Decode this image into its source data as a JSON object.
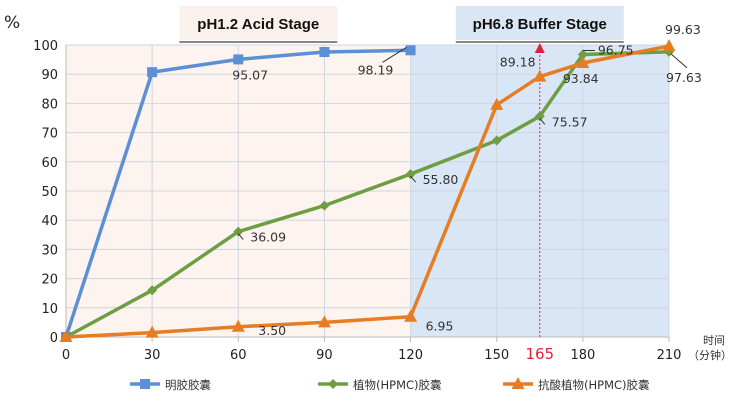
{
  "chart_data": {
    "type": "line",
    "title": "",
    "ylabel": "%",
    "xlabel": "时间（分钟）",
    "xlabel_line1": "时间",
    "xlabel_line2": "（分钟）",
    "xlim": [
      0,
      210
    ],
    "ylim": [
      0,
      100
    ],
    "x_ticks": [
      0,
      30,
      60,
      90,
      120,
      150,
      180,
      210
    ],
    "y_ticks": [
      0,
      10,
      20,
      30,
      40,
      50,
      60,
      70,
      80,
      90,
      100
    ],
    "grid": true,
    "legend_position": "bottom",
    "stages": [
      {
        "label": "pH1.2 Acid Stage",
        "x_range": [
          0,
          120
        ],
        "color": "#fdf3ef"
      },
      {
        "label": "pH6.8 Buffer Stage",
        "x_range": [
          120,
          210
        ],
        "color": "#d9e6f5"
      }
    ],
    "marker_line": {
      "x": 165,
      "label": "165",
      "color": "#e0203a"
    },
    "series": [
      {
        "name": "明胶胶囊",
        "color": "#5b8fd6",
        "marker": "square",
        "x": [
          0,
          30,
          60,
          90,
          120
        ],
        "values": [
          0,
          90.7,
          95.07,
          97.6,
          98.19
        ],
        "labels": [
          {
            "x": 60,
            "y": 95.07,
            "text": "95.07"
          },
          {
            "x": 120,
            "y": 98.19,
            "text": "98.19"
          }
        ]
      },
      {
        "name": "植物(HPMC)胶囊",
        "color": "#6e9e44",
        "marker": "diamond",
        "x": [
          0,
          30,
          60,
          90,
          120,
          150,
          165,
          180,
          210
        ],
        "values": [
          0,
          16.0,
          36.09,
          45.0,
          55.8,
          67.3,
          75.57,
          96.75,
          97.63
        ],
        "labels": [
          {
            "x": 60,
            "y": 36.09,
            "text": "36.09"
          },
          {
            "x": 120,
            "y": 55.8,
            "text": "55.80"
          },
          {
            "x": 165,
            "y": 75.57,
            "text": "75.57"
          },
          {
            "x": 180,
            "y": 96.75,
            "text": "96.75"
          },
          {
            "x": 210,
            "y": 97.63,
            "text": "97.63"
          }
        ]
      },
      {
        "name": "抗酸植物(HPMC)胶囊",
        "color": "#e57c26",
        "marker": "triangle",
        "x": [
          0,
          30,
          60,
          90,
          120,
          150,
          165,
          180,
          210
        ],
        "values": [
          0,
          1.5,
          3.5,
          5.0,
          6.95,
          79.5,
          89.18,
          93.84,
          99.63
        ],
        "labels": [
          {
            "x": 60,
            "y": 3.5,
            "text": "3.50"
          },
          {
            "x": 120,
            "y": 6.95,
            "text": "6.95"
          },
          {
            "x": 165,
            "y": 89.18,
            "text": "89.18"
          },
          {
            "x": 180,
            "y": 93.84,
            "text": "93.84"
          },
          {
            "x": 210,
            "y": 99.63,
            "text": "99.63"
          }
        ]
      }
    ]
  }
}
